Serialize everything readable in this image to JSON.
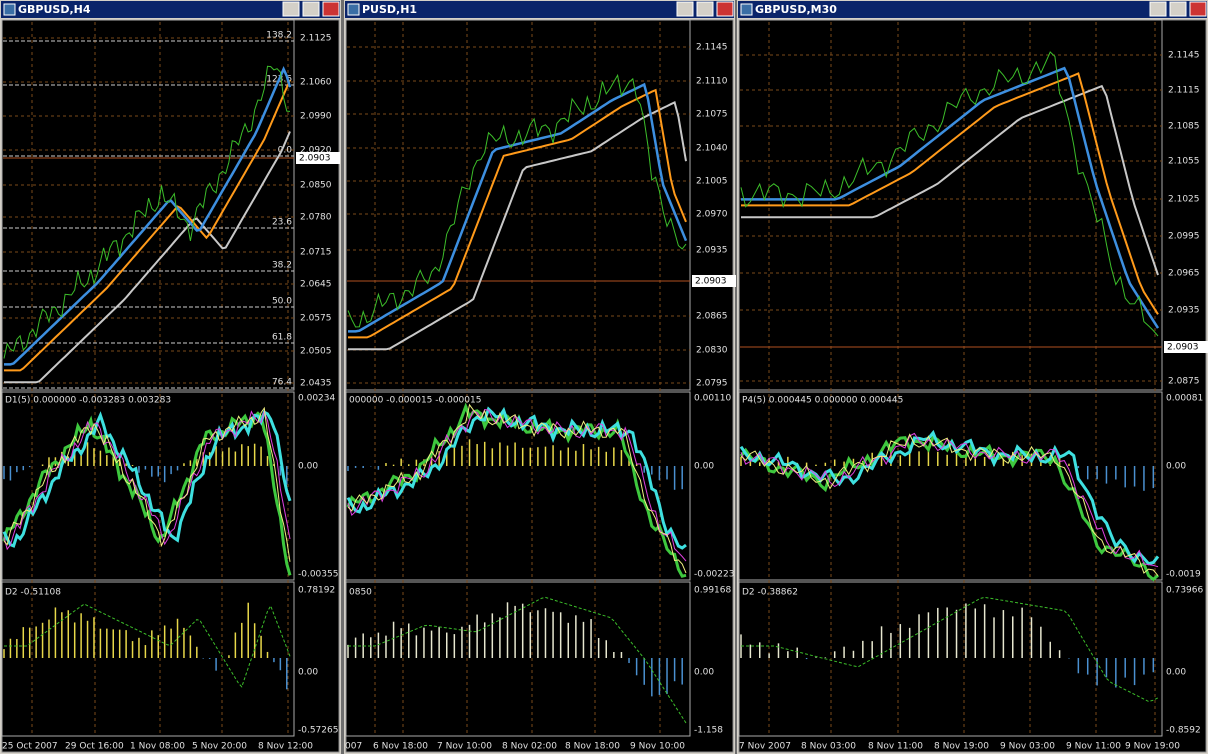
{
  "windows": [
    {
      "title": "GBPUSD,H4",
      "price_labels": [
        "2.1125",
        "2.1060",
        "2.0990",
        "2.0920",
        "2.0850",
        "2.0780",
        "2.0715",
        "2.0645",
        "2.0575",
        "2.0505",
        "2.0435"
      ],
      "current_price": "2.0903",
      "fib_labels": [
        "138.2",
        "123.6",
        "0.0",
        "23.6",
        "38.2",
        "50.0",
        "61.8",
        "76.4"
      ],
      "indicator1": {
        "label": "D1(5) 0.000000 -0.003283 0.003283",
        "scale": [
          "0.00234",
          "0.00",
          "-0.00355"
        ]
      },
      "indicator2": {
        "label": "D2 -0.51108",
        "scale": [
          "0.78192",
          "0.00",
          "-0.57265"
        ]
      },
      "time_labels": [
        "25 Oct 2007",
        "29 Oct 16:00",
        "1 Nov 08:00",
        "5 Nov 20:00",
        "8 Nov 12:00"
      ]
    },
    {
      "title": "PUSD,H1",
      "price_labels": [
        "2.1145",
        "2.1110",
        "2.1075",
        "2.1040",
        "2.1005",
        "2.0970",
        "2.0935",
        "2.0865",
        "2.0830",
        "2.0795"
      ],
      "current_price": "2.0903",
      "fib_labels": [],
      "indicator1": {
        "label": "000000 -0.000015 -0.000015",
        "scale": [
          "0.00110",
          "0.00",
          "-0.00223"
        ]
      },
      "indicator2": {
        "label": "0850",
        "scale": [
          "0.99168",
          "0.00",
          "-1.158"
        ]
      },
      "time_labels": [
        "007",
        "6 Nov 18:00",
        "7 Nov 10:00",
        "8 Nov 02:00",
        "8 Nov 18:00",
        "9 Nov 10:00"
      ]
    },
    {
      "title": "GBPUSD,M30",
      "price_labels": [
        "2.1145",
        "2.1115",
        "2.1085",
        "2.1055",
        "2.1025",
        "2.0995",
        "2.0965",
        "2.0935",
        "2.0875"
      ],
      "current_price": "2.0903",
      "fib_labels": [],
      "indicator1": {
        "label": "P4(5) 0.000445 0.000000 0.000445",
        "scale": [
          "0.00081",
          "0.00",
          "-0.0019"
        ]
      },
      "indicator2": {
        "label": "D2 -0.38862",
        "scale": [
          "0.73966",
          "0.00",
          "-0.8592"
        ]
      },
      "time_labels": [
        "7 Nov 2007",
        "8 Nov 03:00",
        "8 Nov 11:00",
        "8 Nov 19:00",
        "9 Nov 03:00",
        "9 Nov 11:00",
        "9 Nov 19:00"
      ]
    }
  ]
}
